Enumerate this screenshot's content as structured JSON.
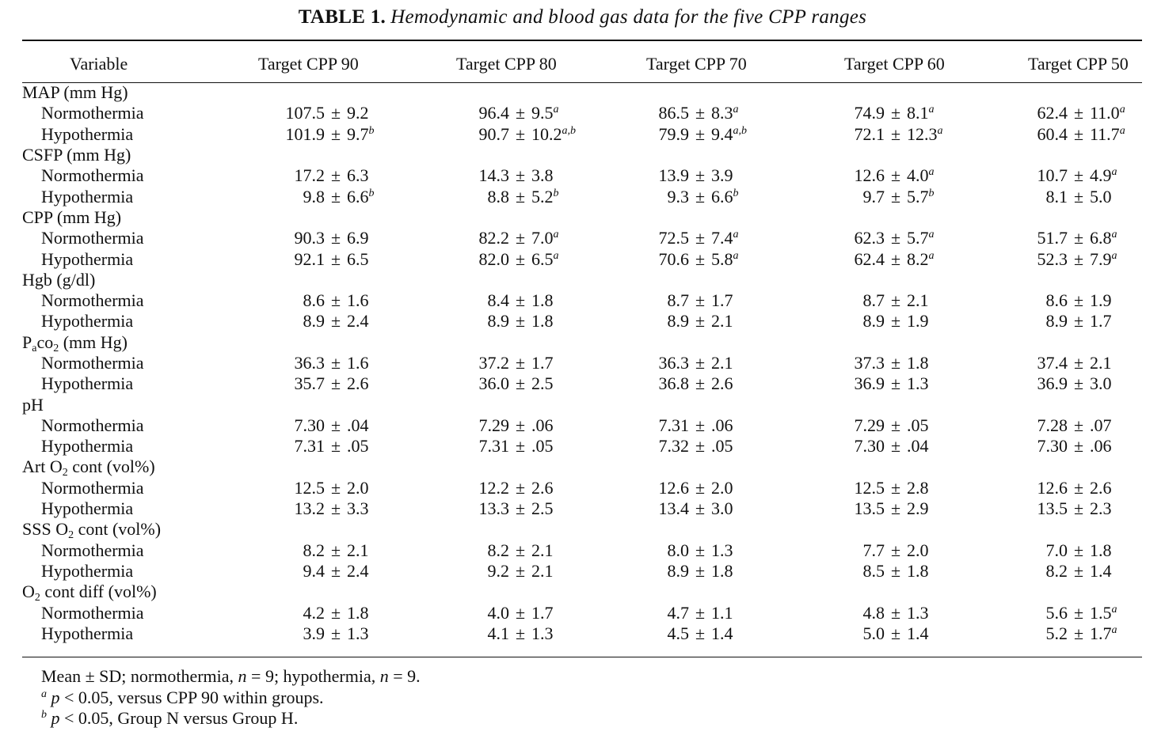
{
  "title": {
    "label": "TABLE 1.",
    "caption": "Hemodynamic and blood gas data for the five CPP ranges"
  },
  "columns": [
    "Variable",
    "Target CPP 90",
    "Target CPP 80",
    "Target CPP 70",
    "Target CPP 60",
    "Target CPP 50"
  ],
  "groups": [
    {
      "label": "MAP (mm Hg)",
      "rows": [
        {
          "label": "Normothermia",
          "cells": [
            {
              "mean": "107.5",
              "sd": "9.2",
              "sup": ""
            },
            {
              "mean": "96.4",
              "sd": "9.5",
              "sup": "a"
            },
            {
              "mean": "86.5",
              "sd": "8.3",
              "sup": "a"
            },
            {
              "mean": "74.9",
              "sd": "8.1",
              "sup": "a"
            },
            {
              "mean": "62.4",
              "sd": "11.0",
              "sup": "a"
            }
          ]
        },
        {
          "label": "Hypothermia",
          "cells": [
            {
              "mean": "101.9",
              "sd": "9.7",
              "sup": "b"
            },
            {
              "mean": "90.7",
              "sd": "10.2",
              "sup": "a,b"
            },
            {
              "mean": "79.9",
              "sd": "9.4",
              "sup": "a,b"
            },
            {
              "mean": "72.1",
              "sd": "12.3",
              "sup": "a"
            },
            {
              "mean": "60.4",
              "sd": "11.7",
              "sup": "a"
            }
          ]
        }
      ]
    },
    {
      "label": "CSFP (mm Hg)",
      "rows": [
        {
          "label": "Normothermia",
          "cells": [
            {
              "mean": "17.2",
              "sd": "6.3",
              "sup": ""
            },
            {
              "mean": "14.3",
              "sd": "3.8",
              "sup": ""
            },
            {
              "mean": "13.9",
              "sd": "3.9",
              "sup": ""
            },
            {
              "mean": "12.6",
              "sd": "4.0",
              "sup": "a"
            },
            {
              "mean": "10.7",
              "sd": "4.9",
              "sup": "a"
            }
          ]
        },
        {
          "label": "Hypothermia",
          "cells": [
            {
              "mean": "9.8",
              "sd": "6.6",
              "sup": "b"
            },
            {
              "mean": "8.8",
              "sd": "5.2",
              "sup": "b"
            },
            {
              "mean": "9.3",
              "sd": "6.6",
              "sup": "b"
            },
            {
              "mean": "9.7",
              "sd": "5.7",
              "sup": "b"
            },
            {
              "mean": "8.1",
              "sd": "5.0",
              "sup": ""
            }
          ]
        }
      ]
    },
    {
      "label": "CPP (mm Hg)",
      "rows": [
        {
          "label": "Normothermia",
          "cells": [
            {
              "mean": "90.3",
              "sd": "6.9",
              "sup": ""
            },
            {
              "mean": "82.2",
              "sd": "7.0",
              "sup": "a"
            },
            {
              "mean": "72.5",
              "sd": "7.4",
              "sup": "a"
            },
            {
              "mean": "62.3",
              "sd": "5.7",
              "sup": "a"
            },
            {
              "mean": "51.7",
              "sd": "6.8",
              "sup": "a"
            }
          ]
        },
        {
          "label": "Hypothermia",
          "cells": [
            {
              "mean": "92.1",
              "sd": "6.5",
              "sup": ""
            },
            {
              "mean": "82.0",
              "sd": "6.5",
              "sup": "a"
            },
            {
              "mean": "70.6",
              "sd": "5.8",
              "sup": "a"
            },
            {
              "mean": "62.4",
              "sd": "8.2",
              "sup": "a"
            },
            {
              "mean": "52.3",
              "sd": "7.9",
              "sup": "a"
            }
          ]
        }
      ]
    },
    {
      "label": "Hgb (g/dl)",
      "rows": [
        {
          "label": "Normothermia",
          "cells": [
            {
              "mean": "8.6",
              "sd": "1.6",
              "sup": ""
            },
            {
              "mean": "8.4",
              "sd": "1.8",
              "sup": ""
            },
            {
              "mean": "8.7",
              "sd": "1.7",
              "sup": ""
            },
            {
              "mean": "8.7",
              "sd": "2.1",
              "sup": ""
            },
            {
              "mean": "8.6",
              "sd": "1.9",
              "sup": ""
            }
          ]
        },
        {
          "label": "Hypothermia",
          "cells": [
            {
              "mean": "8.9",
              "sd": "2.4",
              "sup": ""
            },
            {
              "mean": "8.9",
              "sd": "1.8",
              "sup": ""
            },
            {
              "mean": "8.9",
              "sd": "2.1",
              "sup": ""
            },
            {
              "mean": "8.9",
              "sd": "1.9",
              "sup": ""
            },
            {
              "mean": "8.9",
              "sd": "1.7",
              "sup": ""
            }
          ]
        }
      ]
    },
    {
      "label_parts": [
        "P",
        "a",
        "co",
        "2",
        " (mm Hg)"
      ],
      "rows": [
        {
          "label": "Normothermia",
          "cells": [
            {
              "mean": "36.3",
              "sd": "1.6",
              "sup": ""
            },
            {
              "mean": "37.2",
              "sd": "1.7",
              "sup": ""
            },
            {
              "mean": "36.3",
              "sd": "2.1",
              "sup": ""
            },
            {
              "mean": "37.3",
              "sd": "1.8",
              "sup": ""
            },
            {
              "mean": "37.4",
              "sd": "2.1",
              "sup": ""
            }
          ]
        },
        {
          "label": "Hypothermia",
          "cells": [
            {
              "mean": "35.7",
              "sd": "2.6",
              "sup": ""
            },
            {
              "mean": "36.0",
              "sd": "2.5",
              "sup": ""
            },
            {
              "mean": "36.8",
              "sd": "2.6",
              "sup": ""
            },
            {
              "mean": "36.9",
              "sd": "1.3",
              "sup": ""
            },
            {
              "mean": "36.9",
              "sd": "3.0",
              "sup": ""
            }
          ]
        }
      ]
    },
    {
      "label": "pH",
      "rows": [
        {
          "label": "Normothermia",
          "cells": [
            {
              "mean": "7.30",
              "sd": ".04",
              "sup": ""
            },
            {
              "mean": "7.29",
              "sd": ".06",
              "sup": ""
            },
            {
              "mean": "7.31",
              "sd": ".06",
              "sup": ""
            },
            {
              "mean": "7.29",
              "sd": ".05",
              "sup": ""
            },
            {
              "mean": "7.28",
              "sd": ".07",
              "sup": ""
            }
          ]
        },
        {
          "label": "Hypothermia",
          "cells": [
            {
              "mean": "7.31",
              "sd": ".05",
              "sup": ""
            },
            {
              "mean": "7.31",
              "sd": ".05",
              "sup": ""
            },
            {
              "mean": "7.32",
              "sd": ".05",
              "sup": ""
            },
            {
              "mean": "7.30",
              "sd": ".04",
              "sup": ""
            },
            {
              "mean": "7.30",
              "sd": ".06",
              "sup": ""
            }
          ]
        }
      ]
    },
    {
      "label_parts": [
        "Art O",
        "",
        "",
        "2",
        " cont (vol%)"
      ],
      "rows": [
        {
          "label": "Normothermia",
          "cells": [
            {
              "mean": "12.5",
              "sd": "2.0",
              "sup": ""
            },
            {
              "mean": "12.2",
              "sd": "2.6",
              "sup": ""
            },
            {
              "mean": "12.6",
              "sd": "2.0",
              "sup": ""
            },
            {
              "mean": "12.5",
              "sd": "2.8",
              "sup": ""
            },
            {
              "mean": "12.6",
              "sd": "2.6",
              "sup": ""
            }
          ]
        },
        {
          "label": "Hypothermia",
          "cells": [
            {
              "mean": "13.2",
              "sd": "3.3",
              "sup": ""
            },
            {
              "mean": "13.3",
              "sd": "2.5",
              "sup": ""
            },
            {
              "mean": "13.4",
              "sd": "3.0",
              "sup": ""
            },
            {
              "mean": "13.5",
              "sd": "2.9",
              "sup": ""
            },
            {
              "mean": "13.5",
              "sd": "2.3",
              "sup": ""
            }
          ]
        }
      ]
    },
    {
      "label_parts": [
        "SSS O",
        "",
        "",
        "2",
        " cont (vol%)"
      ],
      "rows": [
        {
          "label": "Normothermia",
          "cells": [
            {
              "mean": "8.2",
              "sd": "2.1",
              "sup": ""
            },
            {
              "mean": "8.2",
              "sd": "2.1",
              "sup": ""
            },
            {
              "mean": "8.0",
              "sd": "1.3",
              "sup": ""
            },
            {
              "mean": "7.7",
              "sd": "2.0",
              "sup": ""
            },
            {
              "mean": "7.0",
              "sd": "1.8",
              "sup": ""
            }
          ]
        },
        {
          "label": "Hypothermia",
          "cells": [
            {
              "mean": "9.4",
              "sd": "2.4",
              "sup": ""
            },
            {
              "mean": "9.2",
              "sd": "2.1",
              "sup": ""
            },
            {
              "mean": "8.9",
              "sd": "1.8",
              "sup": ""
            },
            {
              "mean": "8.5",
              "sd": "1.8",
              "sup": ""
            },
            {
              "mean": "8.2",
              "sd": "1.4",
              "sup": ""
            }
          ]
        }
      ]
    },
    {
      "label_parts": [
        "O",
        "",
        "",
        "2",
        " cont diff (vol%)"
      ],
      "rows": [
        {
          "label": "Normothermia",
          "cells": [
            {
              "mean": "4.2",
              "sd": "1.8",
              "sup": ""
            },
            {
              "mean": "4.0",
              "sd": "1.7",
              "sup": ""
            },
            {
              "mean": "4.7",
              "sd": "1.1",
              "sup": ""
            },
            {
              "mean": "4.8",
              "sd": "1.3",
              "sup": ""
            },
            {
              "mean": "5.6",
              "sd": "1.5",
              "sup": "a"
            }
          ]
        },
        {
          "label": "Hypothermia",
          "cells": [
            {
              "mean": "3.9",
              "sd": "1.3",
              "sup": ""
            },
            {
              "mean": "4.1",
              "sd": "1.3",
              "sup": ""
            },
            {
              "mean": "4.5",
              "sd": "1.4",
              "sup": ""
            },
            {
              "mean": "5.0",
              "sd": "1.4",
              "sup": ""
            },
            {
              "mean": "5.2",
              "sd": "1.7",
              "sup": "a"
            }
          ]
        }
      ]
    }
  ],
  "pm_symbol": "±",
  "notes": {
    "line1": {
      "a": "Mean ± SD; normothermia, ",
      "n1": "n",
      "b": " = 9; hypothermia, ",
      "n2": "n",
      "c": " = 9."
    },
    "line2": {
      "mark": "a",
      "p": "p",
      "text": " < 0.05, versus CPP 90 within groups."
    },
    "line3": {
      "mark": "b",
      "p": "p",
      "text": " < 0.05, Group N versus Group H."
    }
  }
}
